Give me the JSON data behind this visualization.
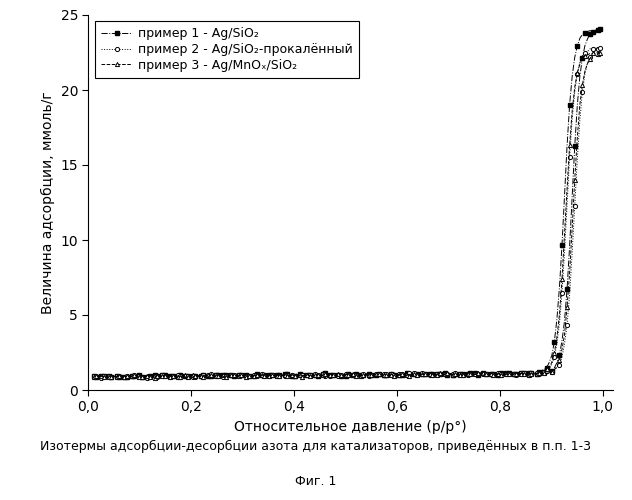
{
  "xlabel": "Относительное давление (p/p°)",
  "ylabel": "Величина адсорбции, ммоль/г",
  "caption_line1": "Изотермы адсорбции-десорбции азота для катализаторов, приведённых в п.п. 1-3",
  "caption_line2": "Фиг. 1",
  "legend1": "пример 1 - Ag/SiO₂",
  "legend2": "пример 2 - Ag/SiO₂-прокалённый",
  "legend3": "пример 3 - Ag/MnOₓ/SiO₂",
  "xlim": [
    0.0,
    1.02
  ],
  "ylim": [
    0,
    25
  ],
  "yticks": [
    0,
    5,
    10,
    15,
    20,
    25
  ],
  "xticks": [
    0.0,
    0.2,
    0.4,
    0.6,
    0.8,
    1.0
  ],
  "xtick_labels": [
    "0,0",
    "0,2",
    "0,4",
    "0,6",
    "0,8",
    "1,0"
  ],
  "background_color": "#ffffff",
  "line_color": "#000000",
  "fontsize": 10,
  "caption_fontsize": 9
}
